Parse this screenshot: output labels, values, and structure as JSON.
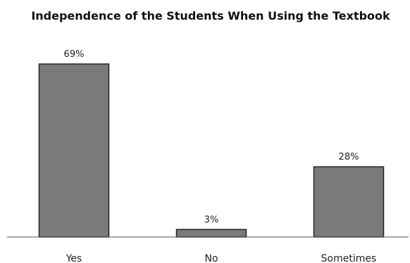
{
  "chart_data": {
    "type": "bar",
    "title": "Independence of the Students When Using the Textbook",
    "xlabel": "",
    "ylabel": "",
    "categories": [
      "Yes",
      "No",
      "Sometimes"
    ],
    "values": [
      69,
      3,
      28
    ],
    "data_labels": [
      "69%",
      "3%",
      "28%"
    ],
    "unit": "%",
    "ylim": [
      0,
      80
    ],
    "grid": false,
    "legend": "none",
    "bar_color": "#7a7a7a",
    "bar_stroke_color": "#222222",
    "axis_color": "#555555"
  }
}
